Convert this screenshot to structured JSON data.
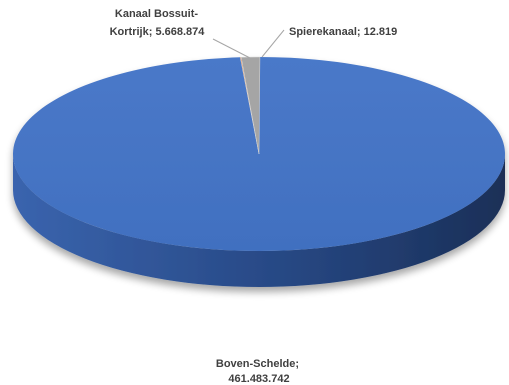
{
  "chart_data": {
    "type": "pie",
    "style": "3d",
    "categories": [
      "Boven-Schelde",
      "Kanaal Bossuit-Kortrijk",
      "Spierekanaal"
    ],
    "values": [
      461483742,
      5668874,
      12819
    ],
    "value_labels": [
      "461.483.742",
      "5.668.874",
      "12.819"
    ],
    "colors": [
      "#4472C4",
      "#A5A5A5",
      "#ED7D31"
    ],
    "legend": "none"
  },
  "labels": {
    "kanaal": {
      "line1": "Kanaal Bossuit-",
      "line2": "Kortrijk;  5.668.874"
    },
    "spiere": {
      "line1": "Spierekanaal;  12.819"
    },
    "boven": {
      "line1": "Boven-Schelde;",
      "line2": "461.483.742"
    }
  }
}
